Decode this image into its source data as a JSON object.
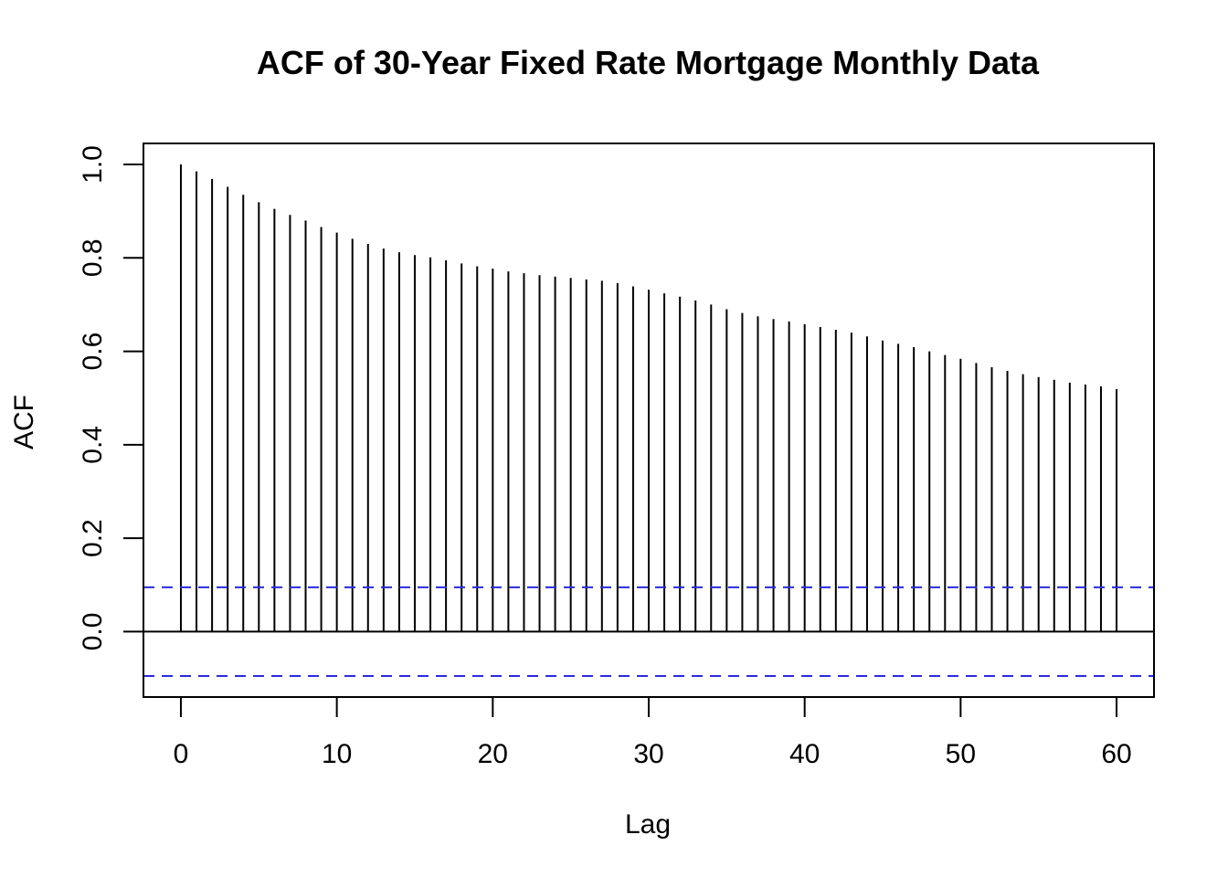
{
  "chart_data": {
    "type": "bar",
    "title": "ACF of 30-Year Fixed Rate Mortgage Monthly Data",
    "xlabel": "Lag",
    "ylabel": "ACF",
    "xlim": [
      -2.4,
      62.4
    ],
    "ylim": [
      -0.14,
      1.045
    ],
    "x_ticks": [
      0,
      10,
      20,
      30,
      40,
      50,
      60
    ],
    "x_tick_labels": [
      "0",
      "10",
      "20",
      "30",
      "40",
      "50",
      "60"
    ],
    "y_ticks": [
      0.0,
      0.2,
      0.4,
      0.6,
      0.8,
      1.0
    ],
    "y_tick_labels": [
      "0.0",
      "0.2",
      "0.4",
      "0.6",
      "0.8",
      "1.0"
    ],
    "lags": [
      0,
      1,
      2,
      3,
      4,
      5,
      6,
      7,
      8,
      9,
      10,
      11,
      12,
      13,
      14,
      15,
      16,
      17,
      18,
      19,
      20,
      21,
      22,
      23,
      24,
      25,
      26,
      27,
      28,
      29,
      30,
      31,
      32,
      33,
      34,
      35,
      36,
      37,
      38,
      39,
      40,
      41,
      42,
      43,
      44,
      45,
      46,
      47,
      48,
      49,
      50,
      51,
      52,
      53,
      54,
      55,
      56,
      57,
      58,
      59,
      60
    ],
    "values": [
      1.0,
      0.985,
      0.969,
      0.952,
      0.935,
      0.919,
      0.905,
      0.892,
      0.88,
      0.866,
      0.854,
      0.841,
      0.83,
      0.82,
      0.812,
      0.806,
      0.801,
      0.795,
      0.788,
      0.782,
      0.777,
      0.771,
      0.767,
      0.763,
      0.76,
      0.757,
      0.754,
      0.751,
      0.746,
      0.739,
      0.732,
      0.724,
      0.717,
      0.709,
      0.7,
      0.69,
      0.682,
      0.675,
      0.669,
      0.664,
      0.658,
      0.652,
      0.646,
      0.64,
      0.632,
      0.623,
      0.616,
      0.609,
      0.6,
      0.592,
      0.584,
      0.575,
      0.566,
      0.558,
      0.551,
      0.545,
      0.539,
      0.533,
      0.529,
      0.525,
      0.519
    ],
    "confidence_bounds": [
      0.095,
      -0.095
    ],
    "zero_line": true,
    "grid": false,
    "colors": {
      "spikes": "#000000",
      "confidence": "#2b2bdb",
      "axes": "#000000"
    }
  }
}
